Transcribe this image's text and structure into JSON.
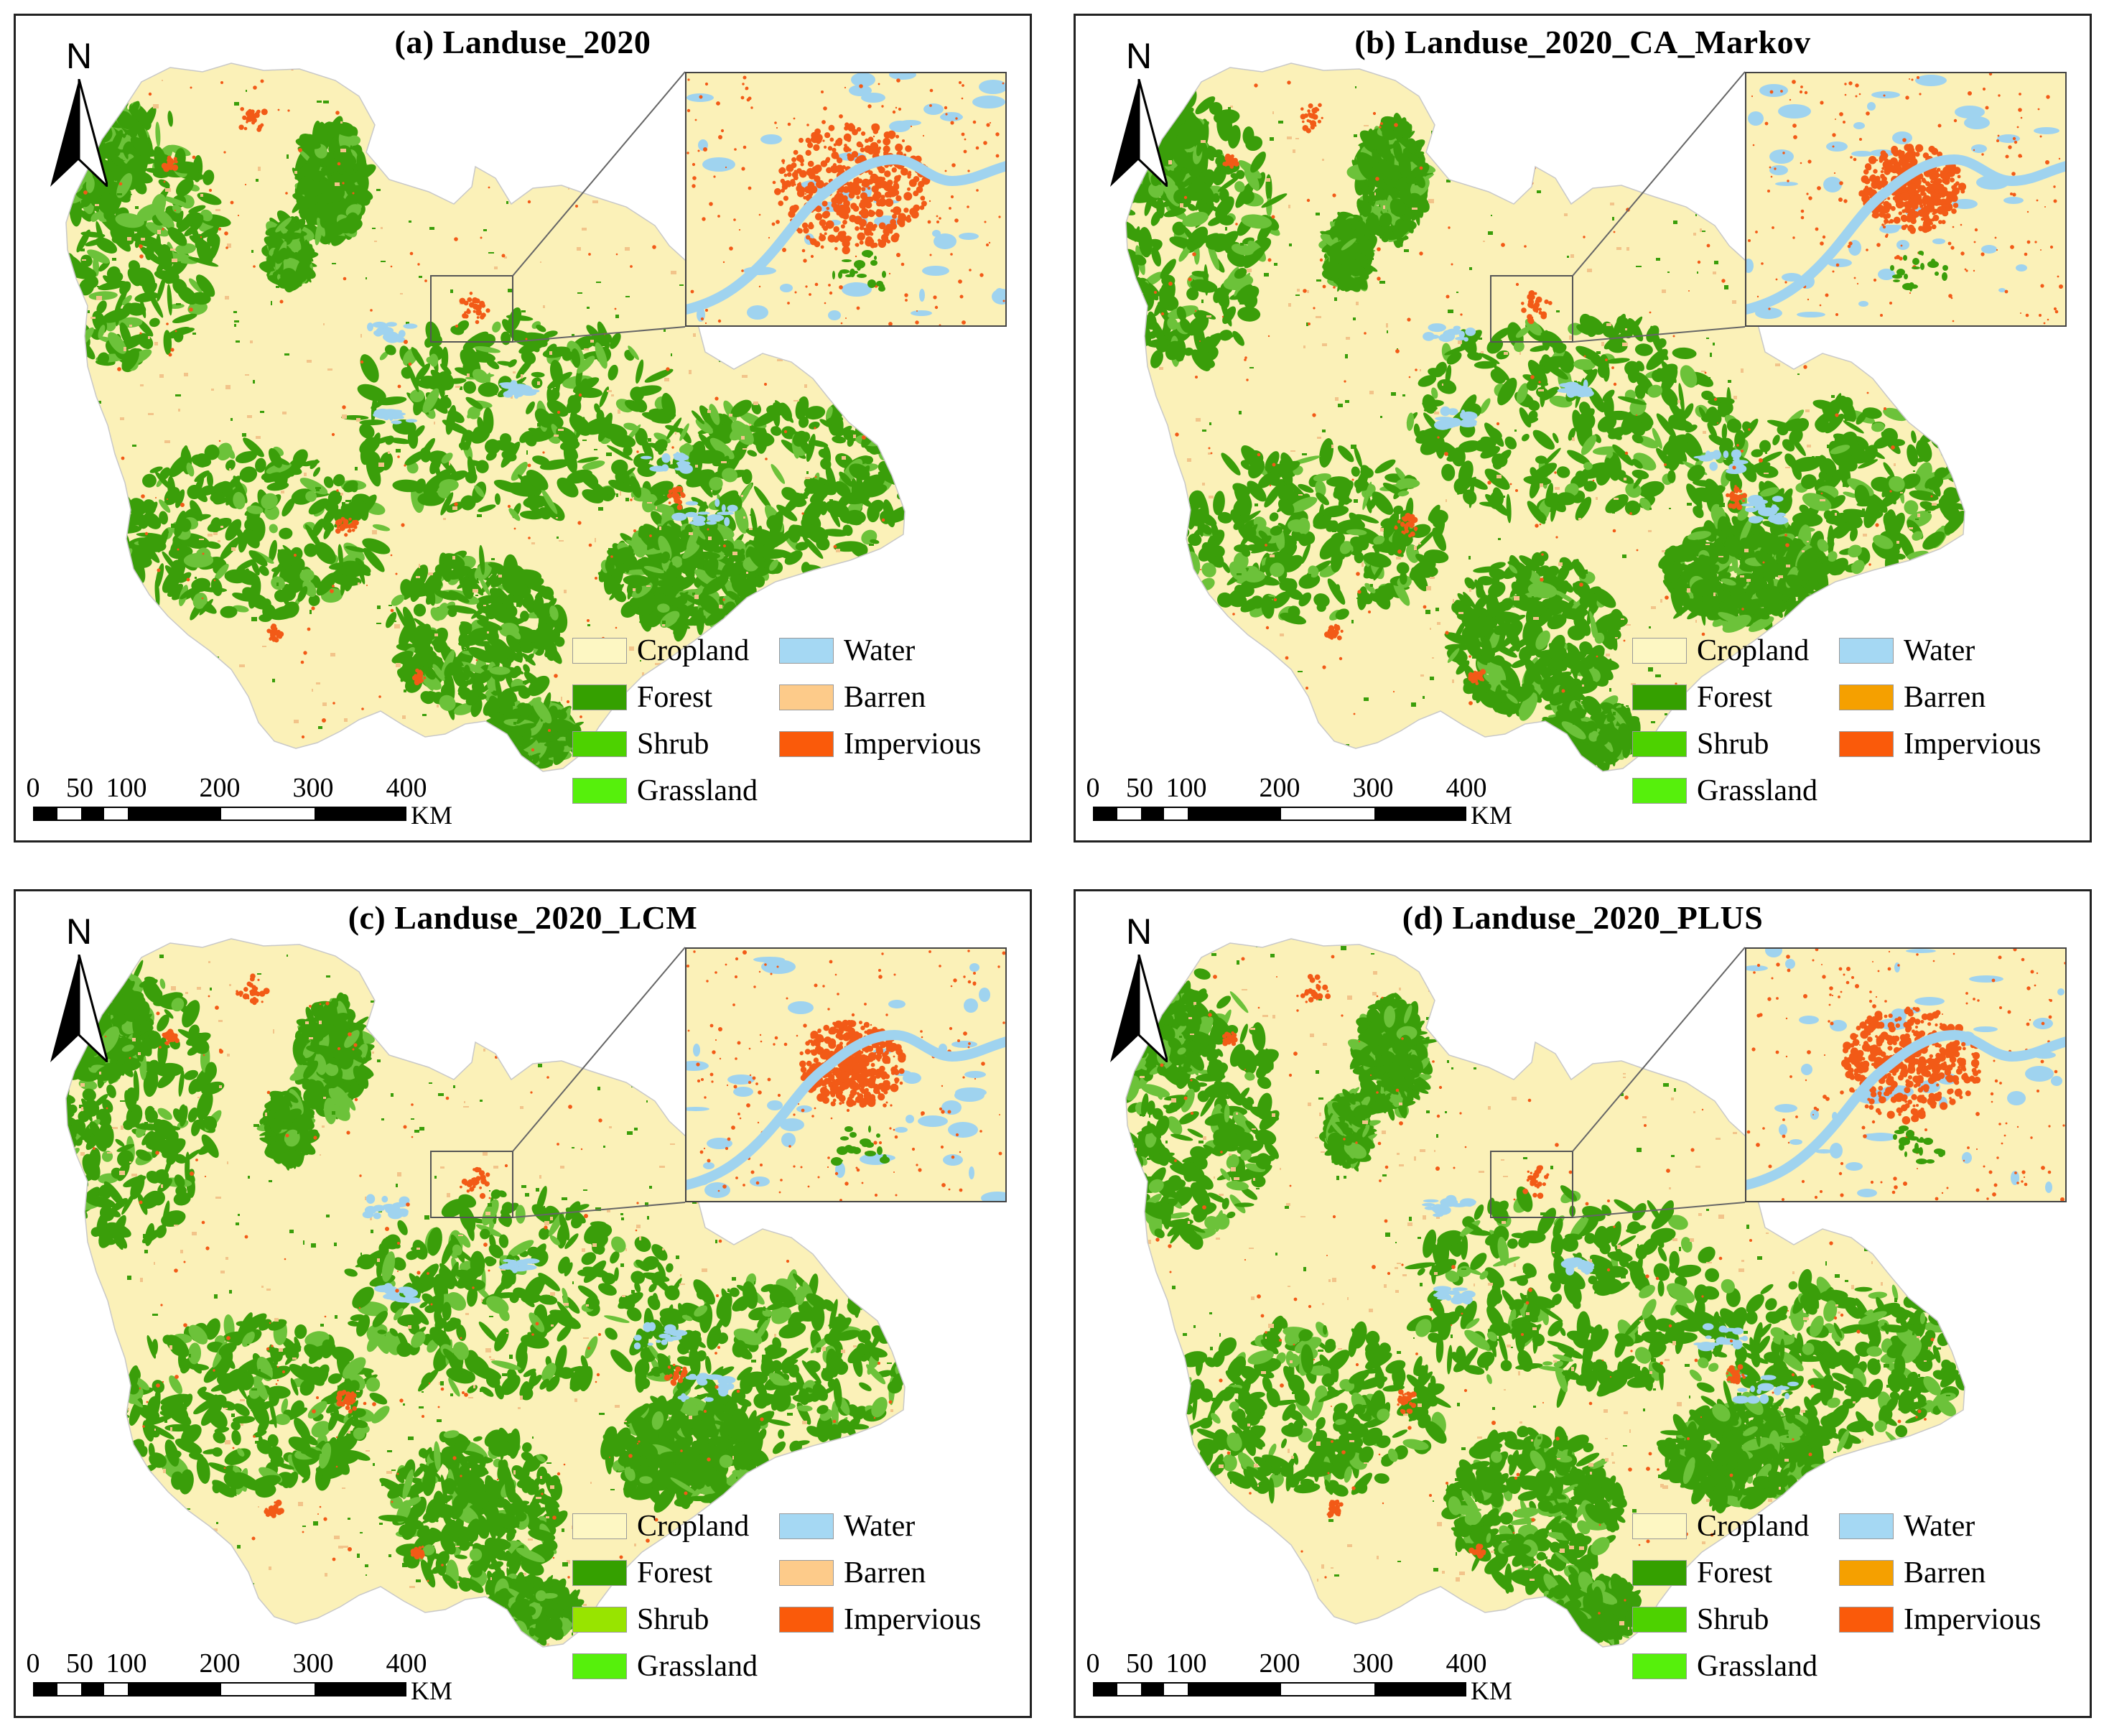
{
  "figure": {
    "panels": [
      {
        "id": "a",
        "title": "(a) Landuse_2020"
      },
      {
        "id": "b",
        "title": "(b) Landuse_2020_CA_Markov"
      },
      {
        "id": "c",
        "title": "(c) Landuse_2020_LCM"
      },
      {
        "id": "d",
        "title": "(d) Landuse_2020_PLUS"
      }
    ],
    "north_label": "N",
    "scale_ticks": [
      "0",
      "50",
      "100",
      "200",
      "300",
      "400"
    ],
    "scale_unit": "KM",
    "legend_labels": {
      "cropland": "Cropland",
      "water": "Water",
      "forest": "Forest",
      "barren": "Barren",
      "shrub": "Shrub",
      "impervious": "Impervious",
      "grassland": "Grassland"
    },
    "legend_colors": {
      "a": {
        "cropland": "#fdf7c3",
        "water": "#a5d8f3",
        "forest": "#35a000",
        "barren": "#fdcb8a",
        "shrub": "#4dd200",
        "impervious": "#fa5a0a",
        "grassland": "#56f00c"
      },
      "b": {
        "cropland": "#fdf7c3",
        "water": "#a5d8f3",
        "forest": "#35a000",
        "barren": "#f5a000",
        "shrub": "#4dd200",
        "impervious": "#fa5a0a",
        "grassland": "#56f00c"
      },
      "c": {
        "cropland": "#fdf7c3",
        "water": "#a5d8f3",
        "forest": "#35a000",
        "barren": "#fdcb8a",
        "shrub": "#98e400",
        "impervious": "#fa5a0a",
        "grassland": "#56f00c"
      },
      "d": {
        "cropland": "#fdf7c3",
        "water": "#a5d8f3",
        "forest": "#35a000",
        "barren": "#f5a000",
        "shrub": "#4dd200",
        "impervious": "#fa5a0a",
        "grassland": "#56f00c"
      }
    },
    "map_colors": {
      "cropland": "#fbf1b8",
      "forest": "#3a9e0a",
      "forest_light": "#6cc23a",
      "water": "#9fd3ef",
      "impervious": "#f25a17",
      "barren": "#f2c48a"
    }
  }
}
